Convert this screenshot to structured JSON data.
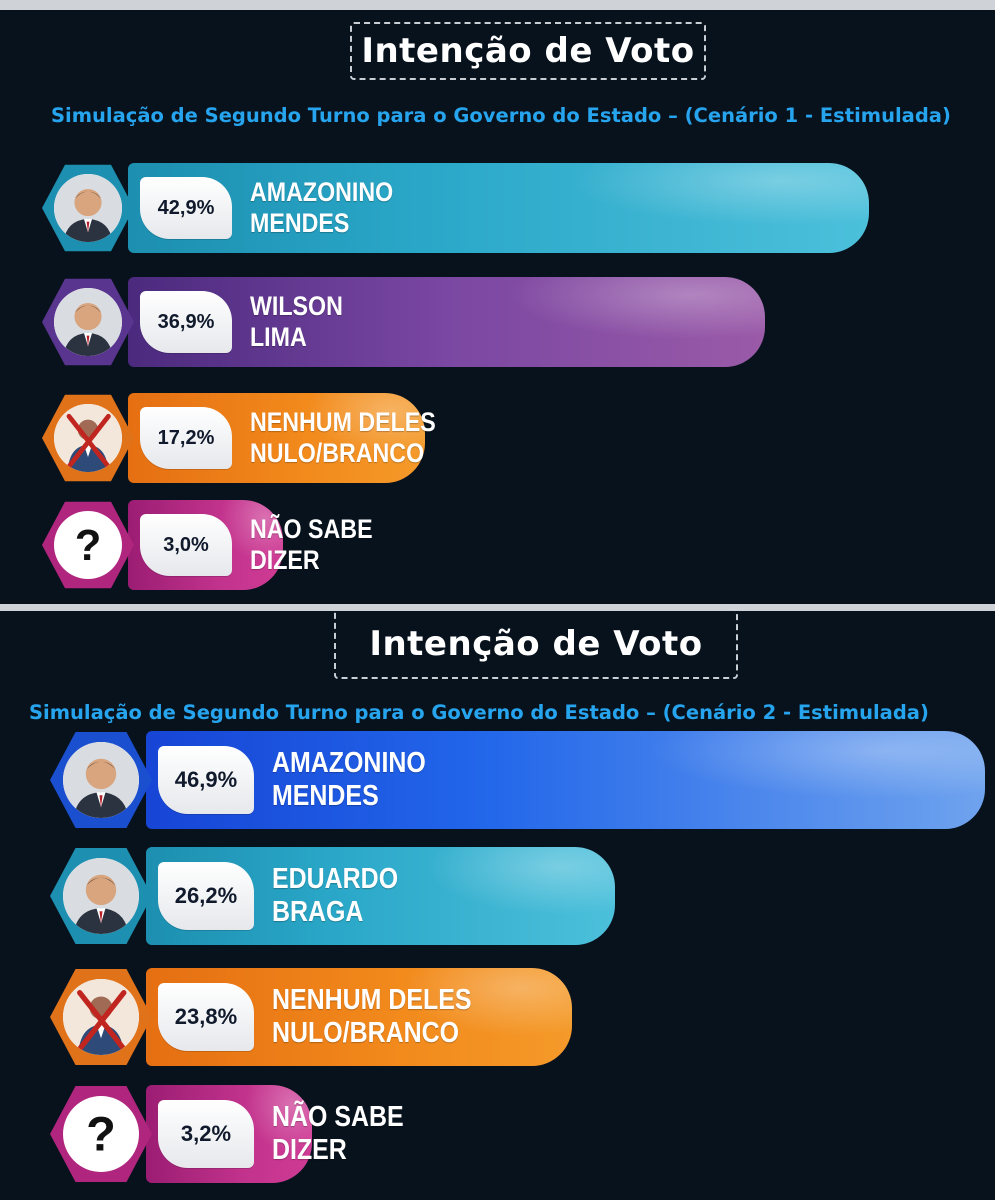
{
  "panels": [
    {
      "title": "Intenção de Voto",
      "subtitle": "Simulação de Segundo Turno para o Governo do Estado – (Cenário 1 - Estimulada)",
      "rows": [
        {
          "pct": "42,9%",
          "line1": "AMAZONINO",
          "line2": "MENDES",
          "icon": "candidate-photo-icon"
        },
        {
          "pct": "36,9%",
          "line1": "WILSON",
          "line2": "LIMA",
          "icon": "candidate-photo-icon"
        },
        {
          "pct": "17,2%",
          "line1": "NENHUM DELES",
          "line2": "NULO/BRANCO",
          "icon": "crossed-person-icon"
        },
        {
          "pct": "3,0%",
          "line1": "NÃO SABE",
          "line2": "DIZER",
          "icon": "question-mark-icon"
        }
      ]
    },
    {
      "title": "Intenção de Voto",
      "subtitle": "Simulação de Segundo Turno para o Governo do Estado – (Cenário 2 - Estimulada)",
      "rows": [
        {
          "pct": "46,9%",
          "line1": "AMAZONINO",
          "line2": "MENDES",
          "icon": "candidate-photo-icon"
        },
        {
          "pct": "26,2%",
          "line1": "EDUARDO",
          "line2": "BRAGA",
          "icon": "candidate-photo-icon"
        },
        {
          "pct": "23,8%",
          "line1": "NENHUM DELES",
          "line2": "NULO/BRANCO",
          "icon": "crossed-person-icon"
        },
        {
          "pct": "3,2%",
          "line1": "NÃO SABE",
          "line2": "DIZER",
          "icon": "question-mark-icon"
        }
      ]
    }
  ],
  "chart_data": [
    {
      "type": "bar",
      "title": "Intenção de Voto",
      "subtitle": "Simulação de Segundo Turno para o Governo do Estado – (Cenário 1 - Estimulada)",
      "categories": [
        "AMAZONINO MENDES",
        "WILSON LIMA",
        "NENHUM DELES NULO/BRANCO",
        "NÃO SABE DIZER"
      ],
      "values": [
        42.9,
        36.9,
        17.2,
        3.0
      ],
      "value_labels": [
        "42,9%",
        "36,9%",
        "17,2%",
        "3,0%"
      ],
      "colors": [
        "#34b3cf",
        "#8a52a6",
        "#f08a1d",
        "#c2338d"
      ]
    },
    {
      "type": "bar",
      "title": "Intenção de Voto",
      "subtitle": "Simulação de Segundo Turno para o Governo do Estado – (Cenário 2 - Estimulada)",
      "categories": [
        "AMAZONINO MENDES",
        "EDUARDO BRAGA",
        "NENHUM DELES NULO/BRANCO",
        "NÃO SABE DIZER"
      ],
      "values": [
        46.9,
        26.2,
        23.8,
        3.2
      ],
      "value_labels": [
        "46,9%",
        "26,2%",
        "23,8%",
        "3,2%"
      ],
      "colors": [
        "#1f63e6",
        "#34b3cf",
        "#f08a1d",
        "#c2338d"
      ]
    }
  ]
}
